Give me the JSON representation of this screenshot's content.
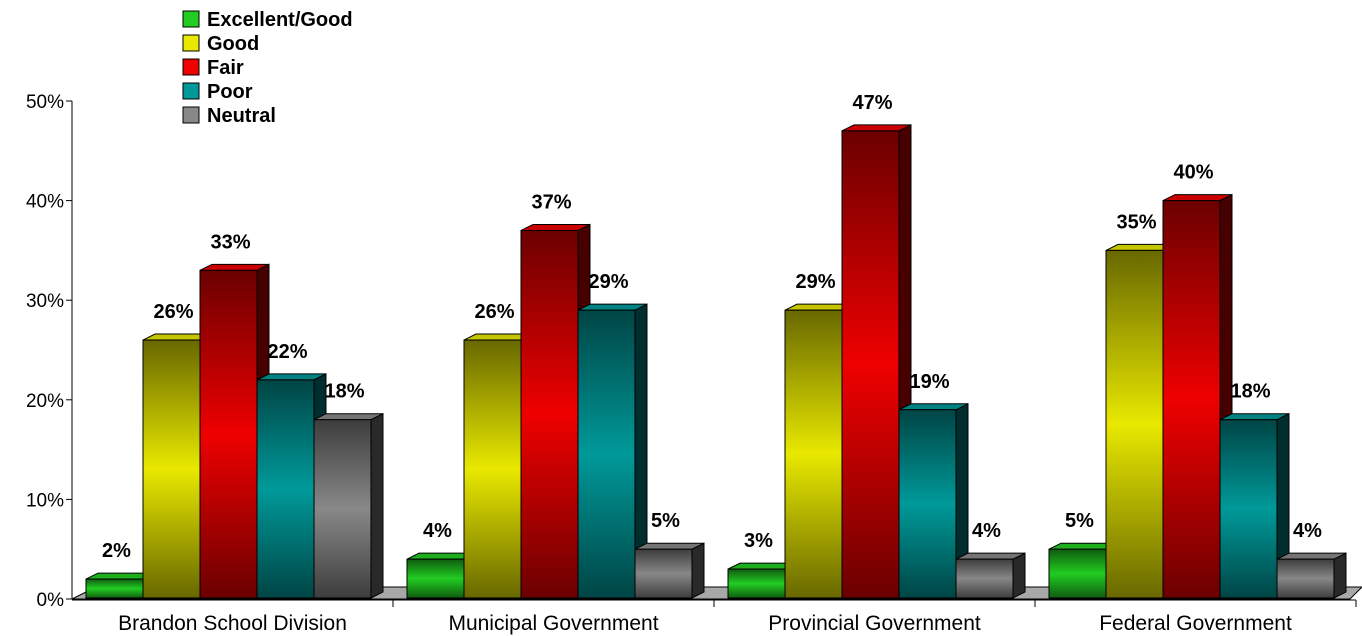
{
  "chart_data": {
    "type": "bar",
    "title": "",
    "xlabel": "",
    "ylabel": "",
    "ylim": [
      0,
      50
    ],
    "y_ticks": [
      "0%",
      "10%",
      "20%",
      "30%",
      "40%",
      "50%"
    ],
    "y_tick_values": [
      0,
      10,
      20,
      30,
      40,
      50
    ],
    "grid": false,
    "legend_position": "top-left",
    "categories": [
      "Brandon School Division",
      "Municipal Government",
      "Provincial Government",
      "Federal Government"
    ],
    "series": [
      {
        "name": "Excellent/Good",
        "color": "#22cc22",
        "values": [
          2,
          4,
          3,
          5
        ],
        "labels": [
          "2%",
          "4%",
          "3%",
          "5%"
        ]
      },
      {
        "name": "Good",
        "color": "#e8e800",
        "values": [
          26,
          26,
          29,
          35
        ],
        "labels": [
          "26%",
          "26%",
          "29%",
          "35%"
        ]
      },
      {
        "name": "Fair",
        "color": "#ee0000",
        "values": [
          33,
          37,
          47,
          40
        ],
        "labels": [
          "33%",
          "37%",
          "47%",
          "40%"
        ]
      },
      {
        "name": "Poor",
        "color": "#009999",
        "values": [
          22,
          29,
          19,
          18
        ],
        "labels": [
          "22%",
          "29%",
          "19%",
          "18%"
        ]
      },
      {
        "name": "Neutral",
        "color": "#888888",
        "values": [
          18,
          5,
          4,
          4
        ],
        "labels": [
          "18%",
          "5%",
          "4%",
          "4%"
        ]
      }
    ]
  }
}
